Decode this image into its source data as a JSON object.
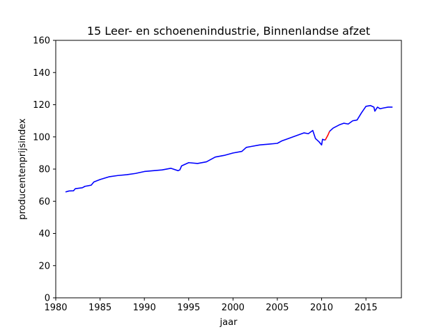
{
  "chart_data": {
    "type": "line",
    "title": "15 Leer- en schoenenindustrie, Binnenlandse afzet",
    "xlabel": "jaar",
    "ylabel": "producentenprijsindex",
    "xlim": [
      1980,
      2019
    ],
    "ylim": [
      0,
      160
    ],
    "xticks": [
      "1980",
      "1985",
      "1990",
      "1995",
      "2000",
      "2005",
      "2010",
      "2015"
    ],
    "yticks": [
      "0",
      "20",
      "40",
      "60",
      "80",
      "100",
      "120",
      "140",
      "160"
    ],
    "grid": false,
    "series": [
      {
        "color": "#0000ff",
        "points": [
          [
            1981.1,
            65.8
          ],
          [
            1981.5,
            66.4
          ],
          [
            1982.0,
            66.5
          ],
          [
            1982.2,
            67.8
          ],
          [
            1983.0,
            68.4
          ],
          [
            1983.3,
            69.3
          ],
          [
            1984.0,
            70.0
          ],
          [
            1984.3,
            72.0
          ],
          [
            1985.0,
            73.5
          ],
          [
            1986.0,
            75.2
          ],
          [
            1987.0,
            76.0
          ],
          [
            1988.0,
            76.5
          ],
          [
            1989.0,
            77.3
          ],
          [
            1990.0,
            78.5
          ],
          [
            1991.0,
            79.0
          ],
          [
            1992.0,
            79.5
          ],
          [
            1993.0,
            80.5
          ],
          [
            1993.8,
            79.0
          ],
          [
            1994.0,
            79.5
          ],
          [
            1994.2,
            82.0
          ],
          [
            1995.0,
            84.0
          ],
          [
            1996.0,
            83.5
          ],
          [
            1997.0,
            84.5
          ],
          [
            1998.0,
            87.5
          ],
          [
            1999.0,
            88.5
          ],
          [
            2000.0,
            90.0
          ],
          [
            2001.0,
            91.0
          ],
          [
            2001.5,
            93.5
          ],
          [
            2002.0,
            94.0
          ],
          [
            2003.0,
            95.0
          ],
          [
            2004.0,
            95.5
          ],
          [
            2005.0,
            96.0
          ],
          [
            2005.5,
            97.5
          ],
          [
            2006.0,
            98.5
          ],
          [
            2007.0,
            100.5
          ],
          [
            2008.0,
            102.5
          ],
          [
            2008.5,
            102.0
          ],
          [
            2009.0,
            104.0
          ],
          [
            2009.3,
            99.0
          ],
          [
            2009.7,
            97.0
          ],
          [
            2010.0,
            95.0
          ],
          [
            2010.1,
            98.5
          ],
          [
            2010.4,
            98.0
          ]
        ]
      },
      {
        "color": "#ff0000",
        "points": [
          [
            2010.4,
            98.0
          ],
          [
            2010.7,
            101.0
          ],
          [
            2010.9,
            103.5
          ]
        ]
      },
      {
        "color": "#0000ff",
        "points": [
          [
            2010.9,
            103.5
          ],
          [
            2011.3,
            105.5
          ],
          [
            2012.0,
            107.5
          ],
          [
            2012.5,
            108.5
          ],
          [
            2013.0,
            108.0
          ],
          [
            2013.5,
            110.0
          ],
          [
            2014.0,
            110.5
          ],
          [
            2014.5,
            115.0
          ],
          [
            2015.0,
            119.0
          ],
          [
            2015.5,
            119.5
          ],
          [
            2015.9,
            118.5
          ],
          [
            2016.0,
            116.0
          ],
          [
            2016.3,
            118.5
          ],
          [
            2016.6,
            117.5
          ],
          [
            2017.0,
            118.0
          ],
          [
            2017.5,
            118.5
          ],
          [
            2018.0,
            118.5
          ]
        ]
      }
    ]
  }
}
